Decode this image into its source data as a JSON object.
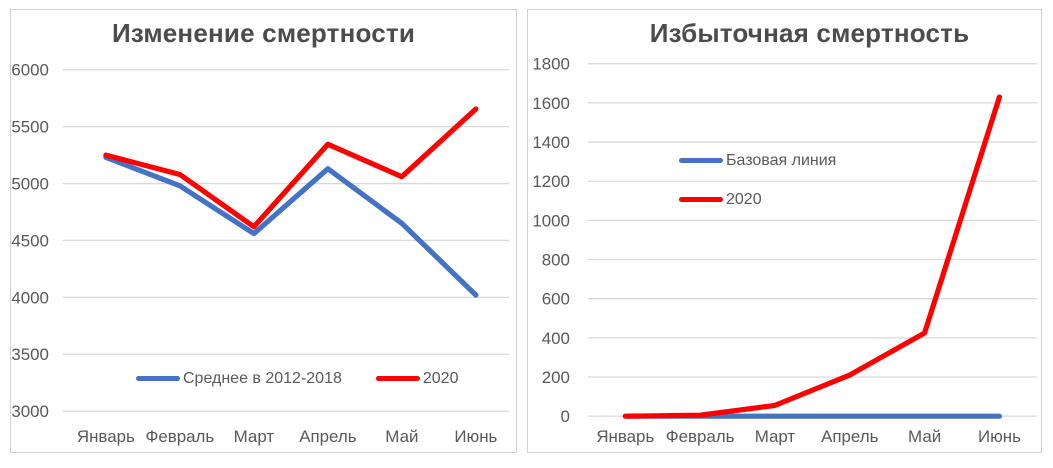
{
  "colors": {
    "grid": "#D9D9D9",
    "axis_text": "#595959",
    "title_text": "#4C4C4C",
    "panel_border": "#D2D2D2",
    "series_blue": "#4472C4",
    "series_red": "#FF0000"
  },
  "chart_data": [
    {
      "type": "line",
      "title": "Изменение смертности",
      "categories": [
        "Январь",
        "Февраль",
        "Март",
        "Апрель",
        "Май",
        "Июнь"
      ],
      "series": [
        {
          "name": "Среднее в 2012-2018",
          "color": "#4472C4",
          "values": [
            5230,
            4980,
            4560,
            5130,
            4650,
            4020
          ]
        },
        {
          "name": "2020",
          "color": "#FF0000",
          "values": [
            5250,
            5080,
            4620,
            5345,
            5060,
            5655
          ]
        }
      ],
      "xlabel": "",
      "ylabel": "",
      "ylim": [
        3000,
        6000
      ],
      "ytick_step": 500,
      "grid": true,
      "legend_position": "inside-bottom-horizontal"
    },
    {
      "type": "line",
      "title": "Избыточная смертность",
      "categories": [
        "Январь",
        "Февраль",
        "Март",
        "Апрель",
        "Май",
        "Июнь"
      ],
      "series": [
        {
          "name": "Базовая линия",
          "color": "#4472C4",
          "values": [
            0,
            0,
            0,
            0,
            0,
            0
          ]
        },
        {
          "name": "2020",
          "color": "#FF0000",
          "values": [
            0,
            5,
            55,
            210,
            425,
            1630
          ]
        }
      ],
      "xlabel": "",
      "ylabel": "",
      "ylim": [
        0,
        1800
      ],
      "ytick_step": 200,
      "grid": true,
      "legend_position": "inside-middle-left-vertical"
    }
  ]
}
